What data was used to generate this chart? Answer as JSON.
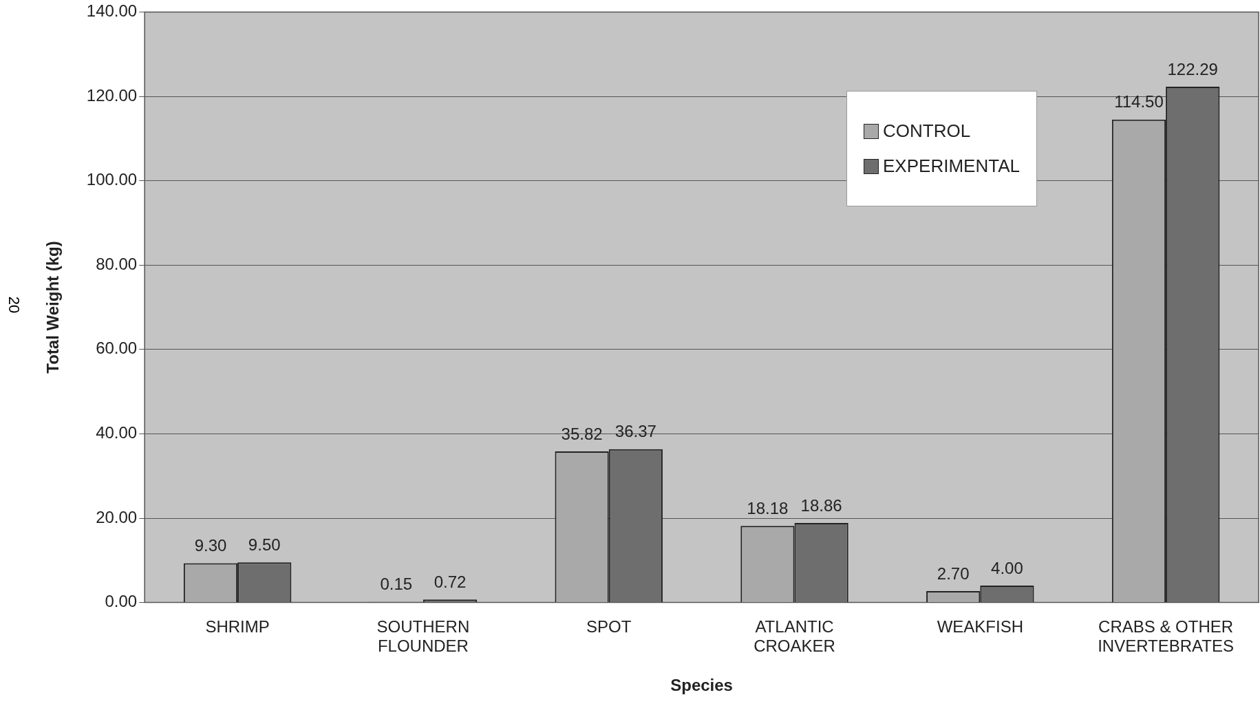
{
  "chart_data": {
    "type": "bar",
    "xlabel": "Species",
    "ylabel": "Total Weight (kg)",
    "categories": [
      "SHRIMP",
      "SOUTHERN FLOUNDER",
      "SPOT",
      "ATLANTIC CROAKER",
      "WEAKFISH",
      "CRABS & OTHER INVERTEBRATES"
    ],
    "series": [
      {
        "name": "CONTROL",
        "color": "#a9a9a9",
        "values": [
          9.3,
          0.15,
          35.82,
          18.18,
          2.7,
          114.5
        ],
        "value_labels": [
          "9.30",
          "0.15",
          "35.82",
          "18.18",
          "2.70",
          "114.50"
        ]
      },
      {
        "name": "EXPERIMENTAL",
        "color": "#6e6e6e",
        "values": [
          9.5,
          0.72,
          36.37,
          18.86,
          4.0,
          122.29
        ],
        "value_labels": [
          "9.50",
          "0.72",
          "36.37",
          "18.86",
          "4.00",
          "122.29"
        ]
      }
    ],
    "ylim": [
      0,
      140
    ],
    "yticks": [
      {
        "value": 0,
        "label": "0.00"
      },
      {
        "value": 20,
        "label": "20.00"
      },
      {
        "value": 40,
        "label": "40.00"
      },
      {
        "value": 60,
        "label": "60.00"
      },
      {
        "value": 80,
        "label": "80.00"
      },
      {
        "value": 100,
        "label": "100.00"
      },
      {
        "value": 120,
        "label": "120.00"
      },
      {
        "value": 140,
        "label": "140.00"
      }
    ],
    "grid": "y",
    "legend": "top right",
    "annotations": [
      "20"
    ]
  }
}
